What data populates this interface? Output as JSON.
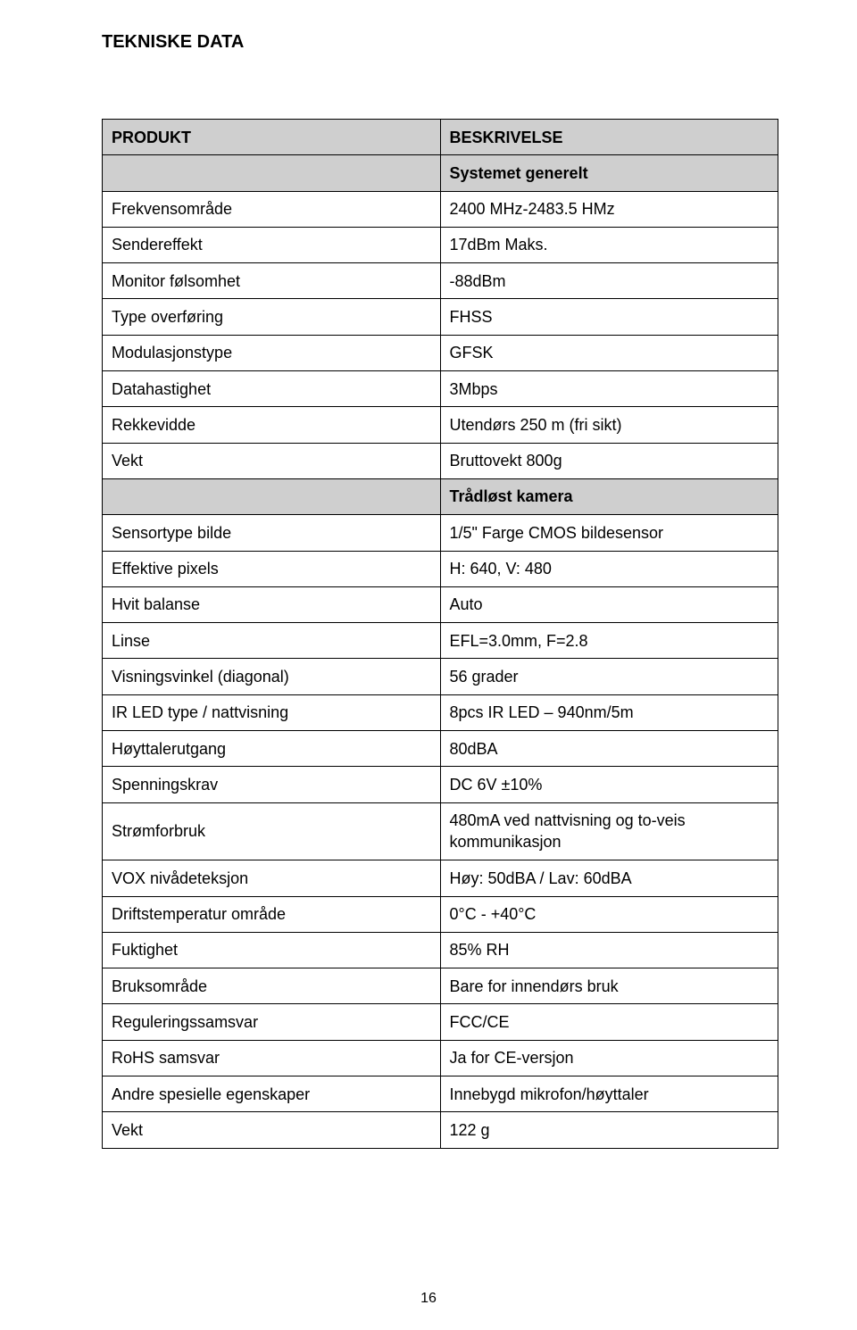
{
  "page": {
    "title": "TEKNISKE DATA",
    "page_number": "16"
  },
  "table": {
    "background_color": "#ffffff",
    "border_color": "#000000",
    "header_bg": "#cfcfcf",
    "section_bg": "#cfcfcf",
    "font_size": 18,
    "header": {
      "col1": "PRODUKT",
      "col2": "BESKRIVELSE"
    },
    "sections": [
      {
        "title": "Systemet generelt",
        "rows": [
          {
            "label": "Frekvensområde",
            "value": "2400 MHz-2483.5 HMz"
          },
          {
            "label": "Sendereffekt",
            "value": "17dBm Maks."
          },
          {
            "label": "Monitor følsomhet",
            "value": "-88dBm"
          },
          {
            "label": "Type overføring",
            "value": "FHSS"
          },
          {
            "label": "Modulasjonstype",
            "value": "GFSK"
          },
          {
            "label": "Datahastighet",
            "value": "3Mbps"
          },
          {
            "label": "Rekkevidde",
            "value": "Utendørs 250 m (fri sikt)"
          },
          {
            "label": "Vekt",
            "value": "Bruttovekt 800g"
          }
        ]
      },
      {
        "title": "Trådløst kamera",
        "rows": [
          {
            "label": "Sensortype bilde",
            "value": "1/5\" Farge CMOS bildesensor"
          },
          {
            "label": "Effektive pixels",
            "value": "H: 640, V: 480"
          },
          {
            "label": "Hvit balanse",
            "value": "Auto"
          },
          {
            "label": "Linse",
            "value": "EFL=3.0mm, F=2.8"
          },
          {
            "label": "Visningsvinkel (diagonal)",
            "value": "56 grader"
          },
          {
            "label": "IR LED type / nattvisning",
            "value": "8pcs IR LED – 940nm/5m"
          },
          {
            "label": "Høyttalerutgang",
            "value": "80dBA"
          },
          {
            "label": "Spenningskrav",
            "value": "DC 6V ±10%"
          },
          {
            "label": "Strømforbruk",
            "value": "480mA ved nattvisning og to-veis kommunikasjon"
          },
          {
            "label": "VOX nivådeteksjon",
            "value": "Høy: 50dBA / Lav: 60dBA"
          },
          {
            "label": "Driftstemperatur område",
            "value": "0°C - +40°C"
          },
          {
            "label": "Fuktighet",
            "value": "85% RH"
          },
          {
            "label": "Bruksområde",
            "value": "Bare for innendørs bruk"
          },
          {
            "label": "Reguleringssamsvar",
            "value": "FCC/CE"
          },
          {
            "label": "RoHS samsvar",
            "value": "Ja for CE-versjon"
          },
          {
            "label": "Andre spesielle egenskaper",
            "value": "Innebygd mikrofon/høyttaler"
          },
          {
            "label": "Vekt",
            "value": "122 g"
          }
        ]
      }
    ]
  }
}
